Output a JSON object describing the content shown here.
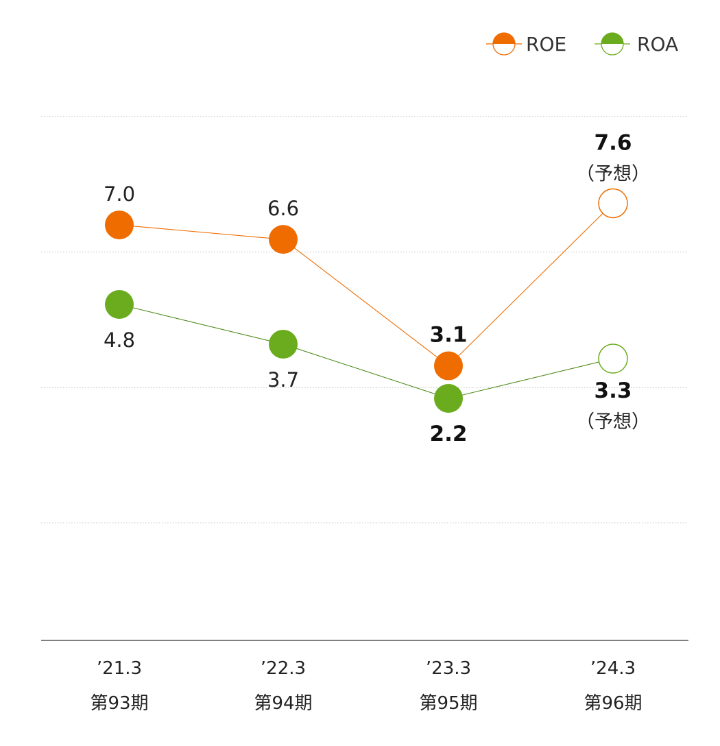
{
  "chart_data": {
    "type": "line",
    "categories": [
      "’21.3",
      "’22.3",
      "’23.3",
      "’24.3"
    ],
    "category_sublabels": [
      "第93期",
      "第94期",
      "第95期",
      "第96期"
    ],
    "ylim": [
      -4.5,
      10
    ],
    "grid": true,
    "legend_position": "top-right",
    "forecast_note": "（予想）",
    "series": [
      {
        "name": "ROE",
        "color": "#ee6c00",
        "values": [
          7.0,
          6.6,
          3.1,
          7.6
        ],
        "labels": [
          "7.0",
          "6.6",
          "3.1",
          "7.6"
        ],
        "forecast": [
          false,
          false,
          false,
          true
        ],
        "emphasis": [
          false,
          false,
          true,
          true
        ]
      },
      {
        "name": "ROA",
        "color": "#6aac1e",
        "values": [
          4.8,
          3.7,
          2.2,
          3.3
        ],
        "labels": [
          "4.8",
          "3.7",
          "2.2",
          "3.3"
        ],
        "forecast": [
          false,
          false,
          false,
          true
        ],
        "emphasis": [
          false,
          false,
          true,
          true
        ]
      }
    ]
  }
}
